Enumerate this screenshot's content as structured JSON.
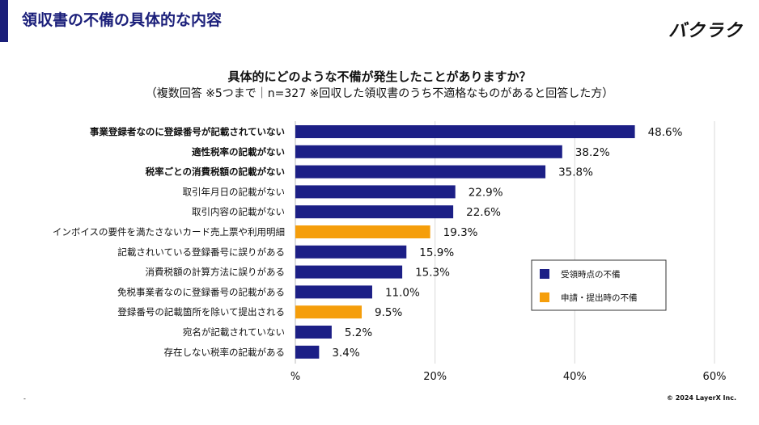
{
  "header": {
    "title": "領収書の不備の具体的な内容",
    "logo_text": "バクラク",
    "accent_color": "#1b1f7a"
  },
  "question": "具体的にどのような不備が発生したことがありますか？",
  "condition": "（複数回答 ※5つまで｜n=327 ※回収した領収書のうち不適格なものがあると回答した方）",
  "footer": {
    "dash": "-",
    "copyright": "© 2024 LayerX Inc."
  },
  "chart_data": {
    "type": "bar",
    "orientation": "horizontal",
    "title": "具体的にどのような不備が発生したことがありますか？",
    "unit": "%",
    "xlim": [
      0,
      60
    ],
    "xticks": [
      0,
      20,
      40,
      60
    ],
    "xtick_labels": [
      "%",
      "20%",
      "40%",
      "60%"
    ],
    "grid": true,
    "legend_position": "center-right",
    "series_colors": {
      "受領時点の不備": "#1c1f86",
      "申請・提出時の不備": "#f59e0b"
    },
    "legend": [
      "受領時点の不備",
      "申請・提出時の不備"
    ],
    "categories": [
      "事業登録者なのに登録番号が記載されていない",
      "適性税率の記載がない",
      "税率ごとの消費税額の記載がない",
      "取引年月日の記載がない",
      "取引内容の記載がない",
      "インボイスの要件を満たさないカード売上票や利用明細",
      "記載されいている登録番号に誤りがある",
      "消費税額の計算方法に誤りがある",
      "免税事業者なのに登録番号の記載がある",
      "登録番号の記載箇所を除いて提出される",
      "宛名が記載されていない",
      "存在しない税率の記載がある"
    ],
    "values": [
      48.6,
      38.2,
      35.8,
      22.9,
      22.6,
      19.3,
      15.9,
      15.3,
      11.0,
      9.5,
      5.2,
      3.4
    ],
    "value_labels": [
      "48.6%",
      "38.2%",
      "35.8%",
      "22.9%",
      "22.6%",
      "19.3%",
      "15.9%",
      "15.3%",
      "11.0%",
      "9.5%",
      "5.2%",
      "3.4%"
    ],
    "series_by_category": [
      "受領時点の不備",
      "受領時点の不備",
      "受領時点の不備",
      "受領時点の不備",
      "受領時点の不備",
      "申請・提出時の不備",
      "受領時点の不備",
      "受領時点の不備",
      "受領時点の不備",
      "申請・提出時の不備",
      "受領時点の不備",
      "受領時点の不備"
    ],
    "bold_categories": [
      true,
      true,
      true,
      false,
      false,
      false,
      false,
      false,
      false,
      false,
      false,
      false
    ]
  }
}
